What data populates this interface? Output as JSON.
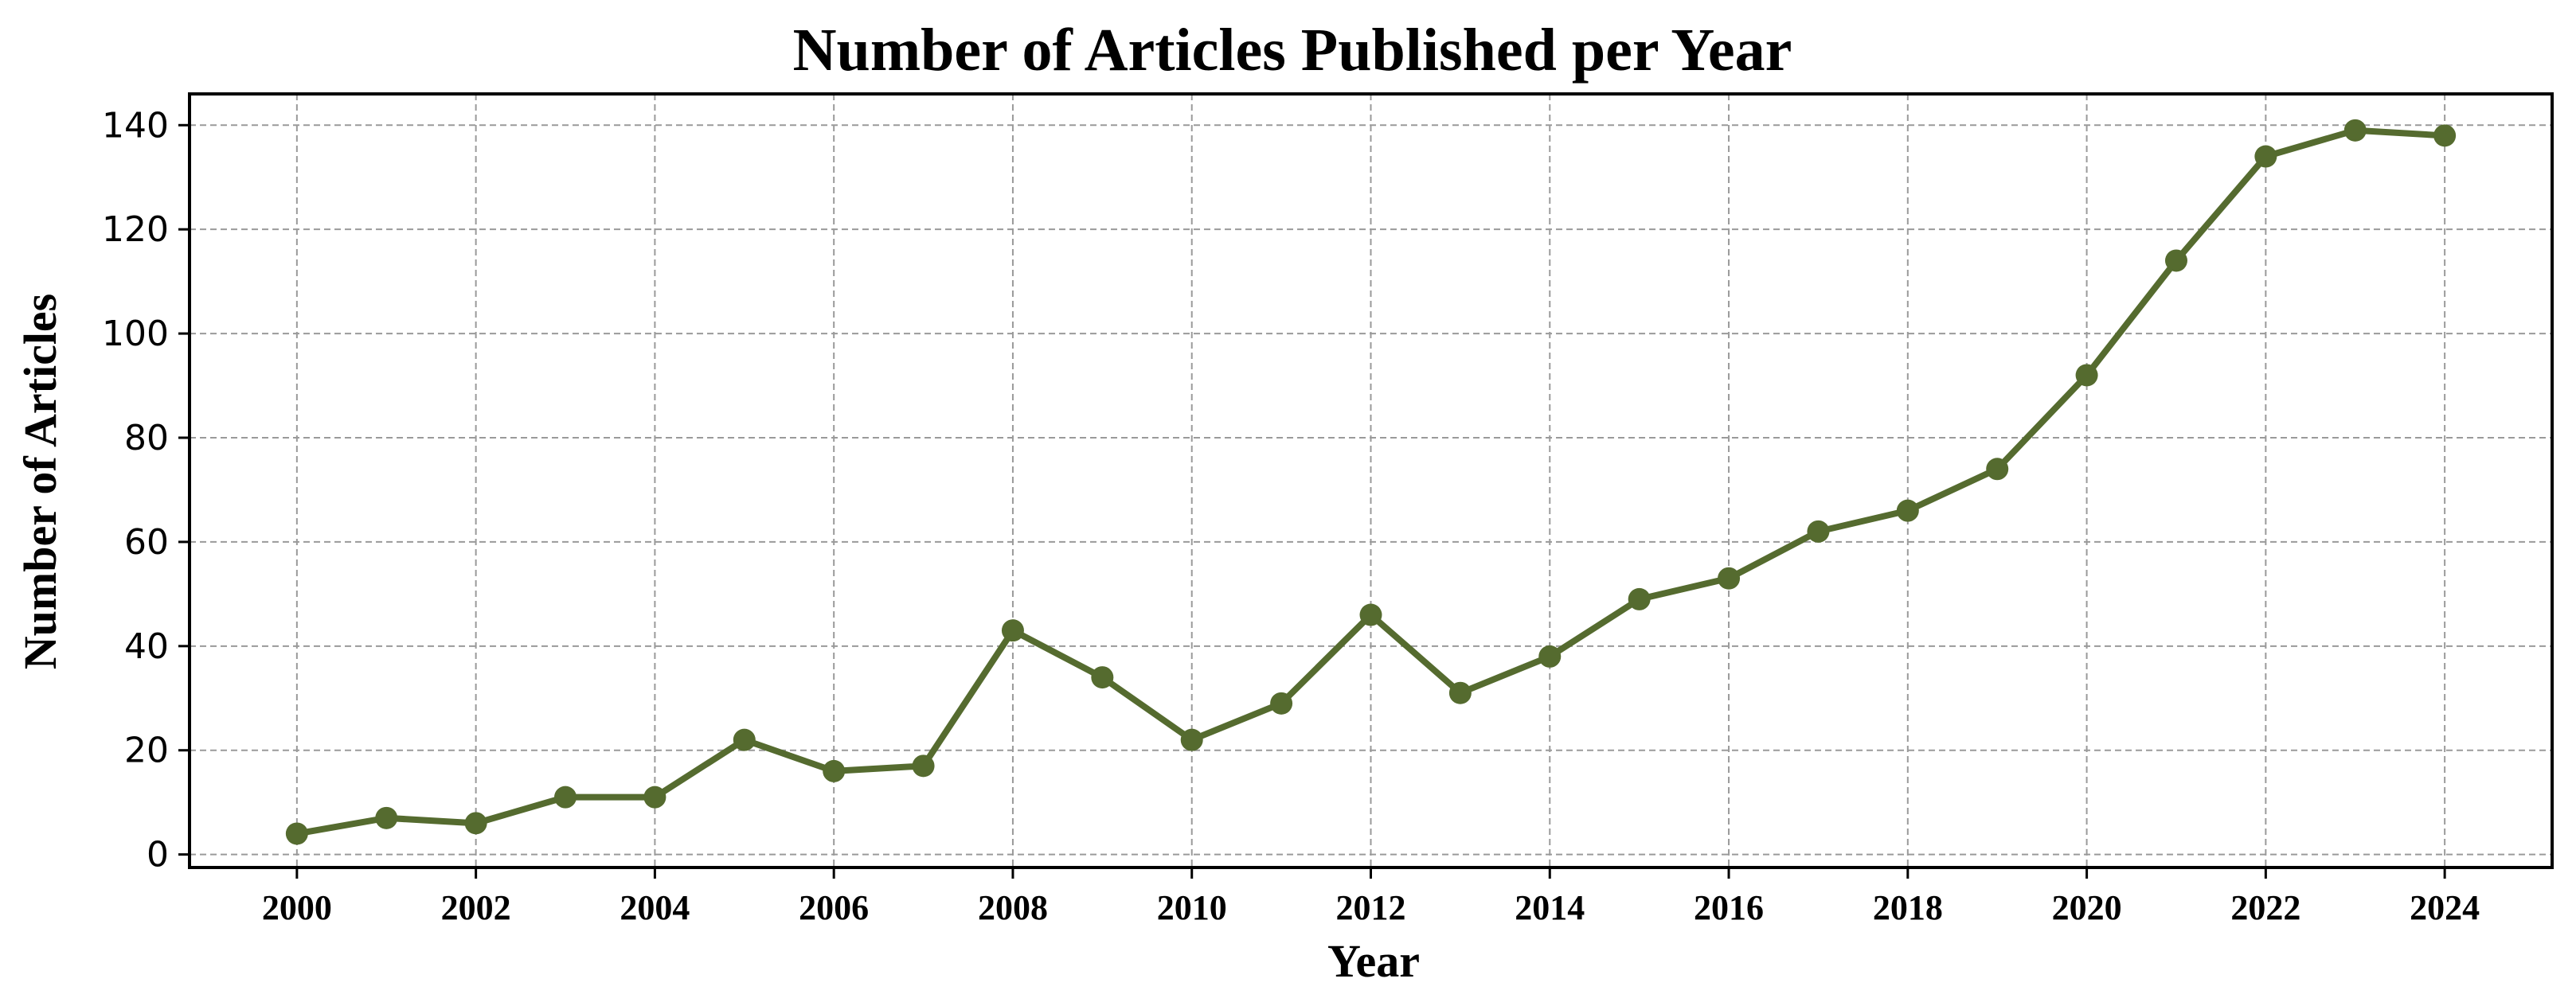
{
  "chart_data": {
    "type": "line",
    "title": "Number of Articles Published per Year",
    "xlabel": "Year",
    "ylabel": "Number of Articles",
    "x": [
      2000,
      2001,
      2002,
      2003,
      2004,
      2005,
      2006,
      2007,
      2008,
      2009,
      2010,
      2011,
      2012,
      2013,
      2014,
      2015,
      2016,
      2017,
      2018,
      2019,
      2020,
      2021,
      2022,
      2023,
      2024
    ],
    "series": [
      {
        "values": [
          4,
          7,
          6,
          11,
          11,
          22,
          16,
          17,
          43,
          34,
          22,
          29,
          46,
          31,
          38,
          49,
          53,
          62,
          66,
          74,
          92,
          114,
          134,
          139,
          138
        ],
        "color": "#556b2f",
        "marker": "circle"
      }
    ],
    "xticks": [
      "2000",
      "2002",
      "2004",
      "2006",
      "2008",
      "2010",
      "2012",
      "2014",
      "2016",
      "2018",
      "2020",
      "2022",
      "2024"
    ],
    "yticks": [
      "0",
      "20",
      "40",
      "60",
      "80",
      "100",
      "120",
      "140"
    ],
    "xlim": [
      1998.8,
      2025.2
    ],
    "ylim": [
      -2.5,
      146
    ],
    "grid": true,
    "grid_style": "dashed"
  }
}
